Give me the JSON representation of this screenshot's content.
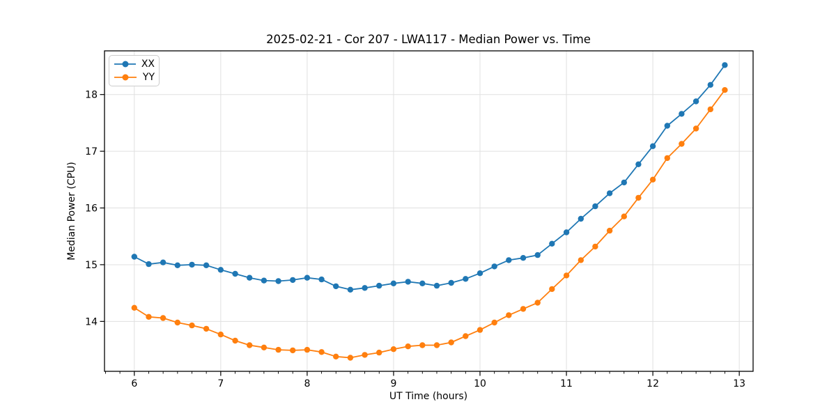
{
  "chart_data": {
    "type": "line",
    "title": "2025-02-21 - Cor 207 - LWA117 - Median Power vs. Time",
    "xlabel": "UT Time (hours)",
    "ylabel": "Median Power (CPU)",
    "xlim": [
      5.655,
      13.16
    ],
    "ylim": [
      13.12,
      18.77
    ],
    "xticks": [
      6,
      7,
      8,
      9,
      10,
      11,
      12,
      13
    ],
    "yticks": [
      14,
      15,
      16,
      17,
      18
    ],
    "x_minor_per_major": 6,
    "grid": true,
    "grid_color": "#e0e0e0",
    "legend_position": "upper left",
    "marker": "o",
    "x": [
      6.0,
      6.167,
      6.333,
      6.5,
      6.667,
      6.833,
      7.0,
      7.167,
      7.333,
      7.5,
      7.667,
      7.833,
      8.0,
      8.167,
      8.333,
      8.5,
      8.667,
      8.833,
      9.0,
      9.167,
      9.333,
      9.5,
      9.667,
      9.833,
      10.0,
      10.167,
      10.333,
      10.5,
      10.667,
      10.833,
      11.0,
      11.167,
      11.333,
      11.5,
      11.667,
      11.833,
      12.0,
      12.167,
      12.333,
      12.5,
      12.667,
      12.833
    ],
    "series": [
      {
        "name": "XX",
        "color": "#1f77b4",
        "values": [
          15.14,
          15.01,
          15.04,
          14.99,
          15.0,
          14.99,
          14.91,
          14.84,
          14.77,
          14.72,
          14.71,
          14.73,
          14.77,
          14.74,
          14.62,
          14.56,
          14.59,
          14.63,
          14.67,
          14.7,
          14.67,
          14.63,
          14.68,
          14.75,
          14.85,
          14.97,
          15.08,
          15.12,
          15.17,
          15.37,
          15.57,
          15.81,
          16.03,
          16.26,
          16.45,
          16.77,
          17.09,
          17.45,
          17.66,
          17.88,
          18.17,
          18.52
        ]
      },
      {
        "name": "YY",
        "color": "#ff7f0e",
        "values": [
          14.24,
          14.08,
          14.06,
          13.98,
          13.93,
          13.87,
          13.77,
          13.66,
          13.58,
          13.54,
          13.5,
          13.49,
          13.5,
          13.46,
          13.38,
          13.36,
          13.41,
          13.45,
          13.51,
          13.56,
          13.58,
          13.58,
          13.63,
          13.74,
          13.85,
          13.98,
          14.11,
          14.22,
          14.33,
          14.57,
          14.81,
          15.08,
          15.32,
          15.6,
          15.85,
          16.18,
          16.5,
          16.88,
          17.13,
          17.4,
          17.74,
          18.08
        ]
      }
    ]
  }
}
